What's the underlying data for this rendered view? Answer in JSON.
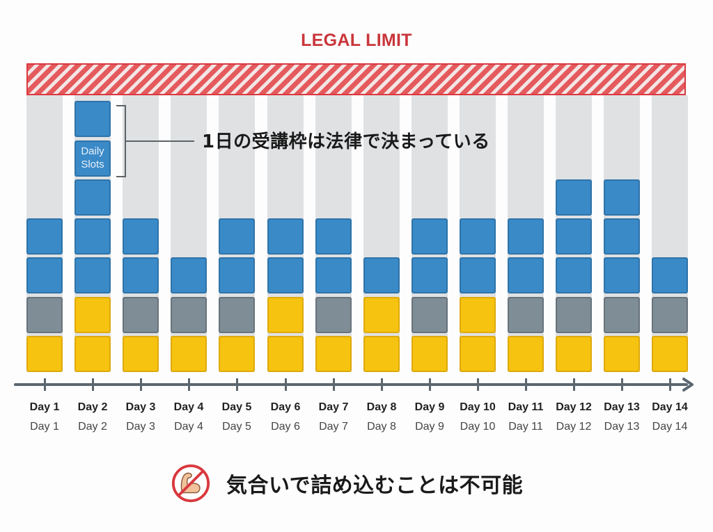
{
  "title": "LEGAL LIMIT",
  "annotation": "1日の受講枠は法律で決まっている",
  "block_label": "Daily\nSlots",
  "footer": {
    "icon": "no-cramming-icon (flexed arm with prohibition sign)",
    "text": "気合いで詰め込むことは不可能"
  },
  "colors": {
    "limit_red": "#d9393f",
    "blue": "#3a8ac8",
    "gray": "#7f8d97",
    "yellow": "#f6c310",
    "column_bg": "#dfe1e3",
    "axis": "#5a6670"
  },
  "chart_data": {
    "type": "bar",
    "subtype": "stacked-blocks",
    "title": "LEGAL LIMIT",
    "categories": [
      "Day 1",
      "Day 2",
      "Day 3",
      "Day 4",
      "Day 5",
      "Day 6",
      "Day 7",
      "Day 8",
      "Day 9",
      "Day 10",
      "Day 11",
      "Day 12",
      "Day 13",
      "Day 14"
    ],
    "secondary_labels": [
      "Day 1",
      "Day 2",
      "Day 3",
      "Day 4",
      "Day 5",
      "Day 6",
      "Day 7",
      "Day 8",
      "Day 9",
      "Day 10",
      "Day 11",
      "Day 12",
      "Day 13",
      "Day 14"
    ],
    "stacks_bottom_to_top": [
      [
        "yellow",
        "gray",
        "blue",
        "blue"
      ],
      [
        "yellow",
        "yellow",
        "blue",
        "blue",
        "blue",
        "blue",
        "blue"
      ],
      [
        "yellow",
        "gray",
        "blue",
        "blue"
      ],
      [
        "yellow",
        "gray",
        "blue"
      ],
      [
        "yellow",
        "gray",
        "blue",
        "blue"
      ],
      [
        "yellow",
        "yellow",
        "blue",
        "blue"
      ],
      [
        "yellow",
        "gray",
        "blue",
        "blue"
      ],
      [
        "yellow",
        "yellow",
        "blue"
      ],
      [
        "yellow",
        "gray",
        "blue",
        "blue"
      ],
      [
        "yellow",
        "yellow",
        "blue",
        "blue"
      ],
      [
        "yellow",
        "gray",
        "blue",
        "blue"
      ],
      [
        "yellow",
        "gray",
        "blue",
        "blue",
        "blue"
      ],
      [
        "yellow",
        "gray",
        "blue",
        "blue",
        "blue"
      ],
      [
        "yellow",
        "gray",
        "blue"
      ]
    ],
    "values": [
      4,
      7,
      4,
      3,
      4,
      4,
      4,
      3,
      4,
      4,
      4,
      5,
      5,
      3
    ],
    "series": [
      {
        "name": "yellow",
        "values": [
          1,
          2,
          1,
          1,
          1,
          2,
          1,
          2,
          1,
          2,
          1,
          1,
          1,
          1
        ]
      },
      {
        "name": "gray",
        "values": [
          1,
          0,
          1,
          1,
          1,
          0,
          1,
          0,
          1,
          0,
          1,
          1,
          1,
          1
        ]
      },
      {
        "name": "blue",
        "values": [
          2,
          5,
          2,
          1,
          2,
          2,
          2,
          1,
          2,
          2,
          2,
          3,
          3,
          1
        ]
      }
    ],
    "annotations": [
      {
        "target": "Day 2 blocks 6-7",
        "text": "Daily Slots"
      },
      {
        "text": "1日の受講枠は法律で決まっている"
      },
      {
        "text": "LEGAL LIMIT",
        "position": "top hatched band"
      }
    ],
    "xlabel": "",
    "ylabel": "",
    "grid": false,
    "legend": "none"
  }
}
